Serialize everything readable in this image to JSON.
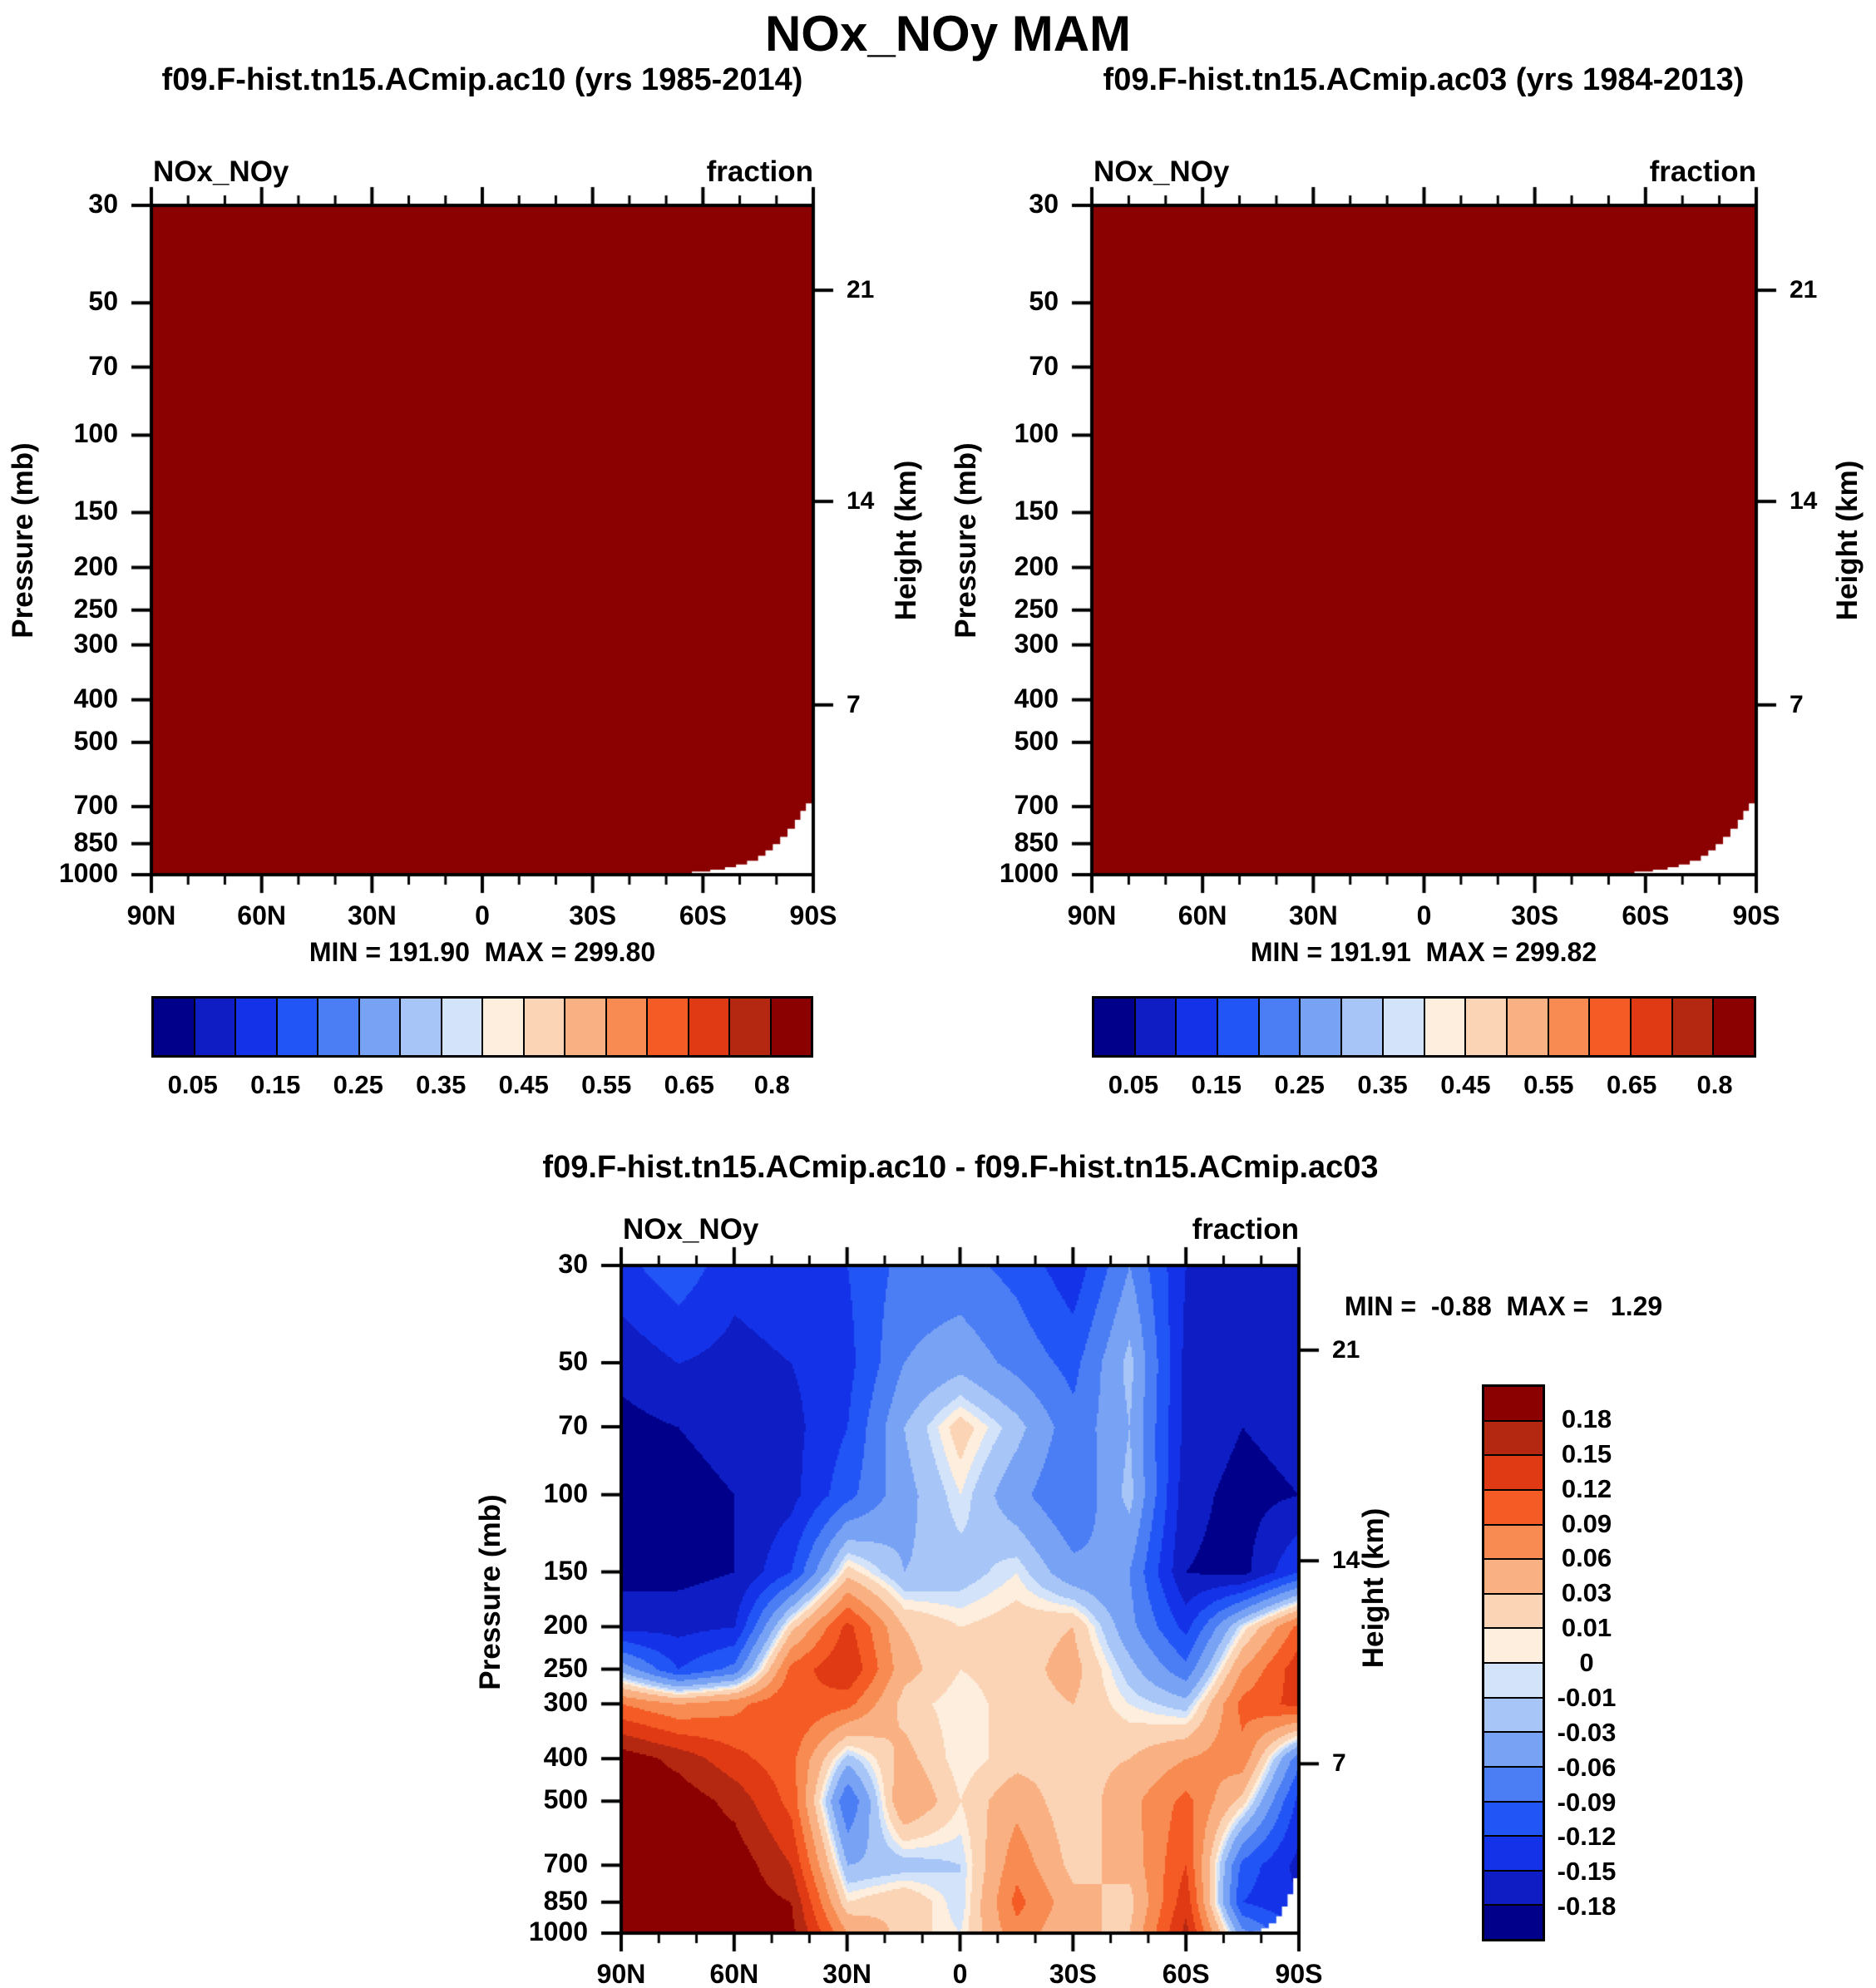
{
  "page": {
    "title": "NOx_NOy MAM",
    "background": "#ffffff",
    "text_color": "#000000"
  },
  "axis": {
    "pressure_label": "Pressure (mb)",
    "height_label": "Height (km)",
    "pressure_ticks": [
      30,
      50,
      70,
      100,
      150,
      200,
      250,
      300,
      400,
      500,
      700,
      850,
      1000
    ],
    "height_ticks": [
      21,
      14,
      7
    ],
    "lat_ticks": [
      "90N",
      "60N",
      "30N",
      "0",
      "30S",
      "60S",
      "90S"
    ]
  },
  "palette_blue_to_red": [
    "#00008b",
    "#0f1ec4",
    "#1433e8",
    "#2255f5",
    "#4b7df5",
    "#78a2f4",
    "#a7c5f7",
    "#d3e3fa",
    "#fdeedd",
    "#fbd4b6",
    "#f9b183",
    "#f78b52",
    "#f55b24",
    "#e03a14",
    "#b42711",
    "#8b0000"
  ],
  "panels": {
    "ac10": {
      "title": "f09.F-hist.tn15.ACmip.ac10 (yrs 1985-2014)",
      "var_label": "NOx_NOy",
      "units_label": "fraction",
      "stats": "MIN = 191.90  MAX = 299.80"
    },
    "ac03": {
      "title": "f09.F-hist.tn15.ACmip.ac03 (yrs 1984-2013)",
      "var_label": "NOx_NOy",
      "units_label": "fraction",
      "stats": "MIN = 191.91  MAX = 299.82"
    },
    "diff": {
      "title": "f09.F-hist.tn15.ACmip.ac10 - f09.F-hist.tn15.ACmip.ac03",
      "var_label": "NOx_NOy",
      "units_label": "fraction",
      "stats": "MIN =  -0.88  MAX =   1.29"
    }
  },
  "colorbar_abs": {
    "labels": [
      "0.05",
      "0.15",
      "0.25",
      "0.35",
      "0.45",
      "0.55",
      "0.65",
      "0.8"
    ],
    "label_boundary_indices": [
      1,
      3,
      5,
      7,
      9,
      11,
      13,
      15
    ]
  },
  "colorbar_diff": {
    "labels": [
      "0.18",
      "0.15",
      "0.12",
      "0.09",
      "0.06",
      "0.03",
      "0.01",
      "0",
      "-0.01",
      "-0.03",
      "-0.06",
      "-0.09",
      "-0.12",
      "-0.15",
      "-0.18"
    ]
  },
  "chart_data": [
    {
      "type": "heatmap",
      "panel": "ac10",
      "title": "f09.F-hist.tn15.ACmip.ac10 (yrs 1985-2014)",
      "variable": "NOx_NOy",
      "units": "fraction",
      "xlabel": "latitude (90N to 90S)",
      "ylabel": "Pressure (mb), log scale 30-1000; secondary axis Height (km) 21/14/7",
      "min": 191.9,
      "max": 299.8,
      "levels": [
        0.05,
        0.1,
        0.15,
        0.2,
        0.25,
        0.3,
        0.35,
        0.4,
        0.45,
        0.5,
        0.55,
        0.6,
        0.65,
        0.7,
        0.8
      ],
      "note": "Entire cross-section is saturated at the top color (> 0.8, dark red); white notch = Antarctic topography",
      "grid": {
        "lats": [
          90,
          -90
        ],
        "pressures": [
          30,
          1000
        ],
        "values": [
          [
            0.9,
            0.9
          ],
          [
            0.9,
            0.9
          ]
        ]
      },
      "mask_polygon": [
        [
          -47,
          1000
        ],
        [
          -47,
          992
        ],
        [
          -57,
          992
        ],
        [
          -57,
          984
        ],
        [
          -62,
          984
        ],
        [
          -62,
          974
        ],
        [
          -66,
          974
        ],
        [
          -66,
          962
        ],
        [
          -69,
          962
        ],
        [
          -69,
          948
        ],
        [
          -72,
          948
        ],
        [
          -72,
          930
        ],
        [
          -75,
          930
        ],
        [
          -75,
          906
        ],
        [
          -77,
          906
        ],
        [
          -77,
          880
        ],
        [
          -79,
          880
        ],
        [
          -79,
          852
        ],
        [
          -81,
          852
        ],
        [
          -81,
          820
        ],
        [
          -83,
          820
        ],
        [
          -83,
          786
        ],
        [
          -85,
          786
        ],
        [
          -85,
          750
        ],
        [
          -86.5,
          750
        ],
        [
          -86.5,
          716
        ],
        [
          -88,
          716
        ],
        [
          -88,
          688
        ],
        [
          -90,
          688
        ],
        [
          -90,
          1000
        ]
      ]
    },
    {
      "type": "heatmap",
      "panel": "ac03",
      "title": "f09.F-hist.tn15.ACmip.ac03 (yrs 1984-2013)",
      "variable": "NOx_NOy",
      "units": "fraction",
      "xlabel": "latitude (90N to 90S)",
      "ylabel": "Pressure (mb), log scale 30-1000; secondary axis Height (km) 21/14/7",
      "min": 191.91,
      "max": 299.82,
      "levels": [
        0.05,
        0.1,
        0.15,
        0.2,
        0.25,
        0.3,
        0.35,
        0.4,
        0.45,
        0.5,
        0.55,
        0.6,
        0.65,
        0.7,
        0.8
      ],
      "note": "Entire cross-section is saturated at the top color (> 0.8, dark red); white notch = Antarctic topography",
      "grid": {
        "lats": [
          90,
          -90
        ],
        "pressures": [
          30,
          1000
        ],
        "values": [
          [
            0.9,
            0.9
          ],
          [
            0.9,
            0.9
          ]
        ]
      },
      "mask_polygon": [
        [
          -47,
          1000
        ],
        [
          -47,
          992
        ],
        [
          -57,
          992
        ],
        [
          -57,
          984
        ],
        [
          -62,
          984
        ],
        [
          -62,
          974
        ],
        [
          -66,
          974
        ],
        [
          -66,
          962
        ],
        [
          -69,
          962
        ],
        [
          -69,
          948
        ],
        [
          -72,
          948
        ],
        [
          -72,
          930
        ],
        [
          -75,
          930
        ],
        [
          -75,
          906
        ],
        [
          -77,
          906
        ],
        [
          -77,
          880
        ],
        [
          -79,
          880
        ],
        [
          -79,
          852
        ],
        [
          -81,
          852
        ],
        [
          -81,
          820
        ],
        [
          -83,
          820
        ],
        [
          -83,
          786
        ],
        [
          -85,
          786
        ],
        [
          -85,
          750
        ],
        [
          -86.5,
          750
        ],
        [
          -86.5,
          716
        ],
        [
          -88,
          716
        ],
        [
          -88,
          688
        ],
        [
          -90,
          688
        ],
        [
          -90,
          1000
        ]
      ]
    },
    {
      "type": "heatmap",
      "panel": "diff",
      "title": "f09.F-hist.tn15.ACmip.ac10 - f09.F-hist.tn15.ACmip.ac03",
      "variable": "NOx_NOy",
      "units": "fraction",
      "xlabel": "latitude (90N to 90S)",
      "ylabel": "Pressure (mb), log scale 30-1000; secondary axis Height (km) 21/14/7",
      "min": -0.88,
      "max": 1.29,
      "levels": [
        -0.18,
        -0.15,
        -0.12,
        -0.09,
        -0.06,
        -0.03,
        -0.01,
        0,
        0.01,
        0.03,
        0.06,
        0.09,
        0.12,
        0.15,
        0.18
      ],
      "note": "Difference field estimated from contour colors; negative (blue) in the stratosphere and SE block, positive (red) lower troposphere NH and SH warm columns",
      "grid": {
        "lats": [
          90,
          75,
          60,
          45,
          30,
          15,
          0,
          -15,
          -30,
          -45,
          -60,
          -75,
          -90
        ],
        "pressures": [
          30,
          50,
          70,
          100,
          150,
          200,
          250,
          300,
          400,
          500,
          700,
          850,
          1000
        ],
        "values": [
          [
            -0.13,
            -0.1,
            -0.14,
            -0.13,
            -0.12,
            -0.08,
            -0.08,
            -0.1,
            -0.14,
            -0.06,
            -0.15,
            -0.16,
            -0.16
          ],
          [
            -0.17,
            -0.15,
            -0.16,
            -0.15,
            -0.13,
            -0.06,
            -0.04,
            -0.07,
            -0.1,
            -0.02,
            -0.16,
            -0.17,
            -0.17
          ],
          [
            -0.19,
            -0.18,
            -0.17,
            -0.16,
            -0.12,
            -0.03,
            0.02,
            -0.02,
            -0.08,
            -0.03,
            -0.16,
            -0.18,
            -0.17
          ],
          [
            -0.19,
            -0.19,
            -0.18,
            -0.16,
            -0.1,
            -0.04,
            0.0,
            -0.05,
            -0.09,
            -0.02,
            -0.17,
            -0.19,
            -0.18
          ],
          [
            -0.19,
            -0.19,
            -0.18,
            -0.12,
            0.02,
            -0.03,
            -0.02,
            0.0,
            -0.05,
            -0.06,
            -0.18,
            -0.19,
            -0.12
          ],
          [
            -0.16,
            -0.16,
            -0.15,
            0.02,
            0.13,
            0.03,
            0.01,
            0.02,
            0.03,
            -0.05,
            -0.13,
            0.0,
            0.1
          ],
          [
            -0.04,
            -0.12,
            -0.08,
            0.1,
            0.15,
            0.04,
            0.01,
            0.02,
            0.04,
            -0.02,
            -0.08,
            0.06,
            0.14
          ],
          [
            0.09,
            0.06,
            0.08,
            0.12,
            0.1,
            0.02,
            0.0,
            0.02,
            0.03,
            0.0,
            -0.02,
            0.1,
            0.13
          ],
          [
            0.2,
            0.17,
            0.13,
            0.1,
            -0.02,
            0.04,
            0.0,
            0.02,
            0.02,
            0.03,
            0.06,
            0.08,
            -0.08
          ],
          [
            0.2,
            0.2,
            0.17,
            0.11,
            -0.09,
            0.06,
            0.01,
            0.05,
            0.01,
            0.05,
            0.1,
            0.02,
            -0.13
          ],
          [
            0.2,
            0.2,
            0.2,
            0.15,
            -0.03,
            -0.02,
            -0.01,
            0.08,
            0.02,
            0.04,
            0.12,
            -0.1,
            -0.16
          ],
          [
            0.2,
            0.2,
            0.2,
            0.18,
            0.01,
            0.03,
            -0.01,
            0.1,
            0.04,
            0.02,
            0.14,
            -0.12,
            -0.15
          ],
          [
            0.2,
            0.2,
            0.2,
            0.19,
            0.06,
            0.02,
            0.0,
            0.08,
            0.03,
            0.03,
            0.16,
            -0.05,
            -0.12
          ]
        ]
      },
      "mask_polygon": [
        [
          -78,
          1000
        ],
        [
          -78,
          990
        ],
        [
          -80,
          990
        ],
        [
          -80,
          975
        ],
        [
          -82,
          975
        ],
        [
          -82,
          950
        ],
        [
          -84,
          950
        ],
        [
          -84,
          915
        ],
        [
          -85.5,
          915
        ],
        [
          -85.5,
          870
        ],
        [
          -87,
          870
        ],
        [
          -87,
          815
        ],
        [
          -88.5,
          815
        ],
        [
          -88.5,
          750
        ],
        [
          -90,
          750
        ],
        [
          -90,
          1000
        ]
      ]
    }
  ]
}
